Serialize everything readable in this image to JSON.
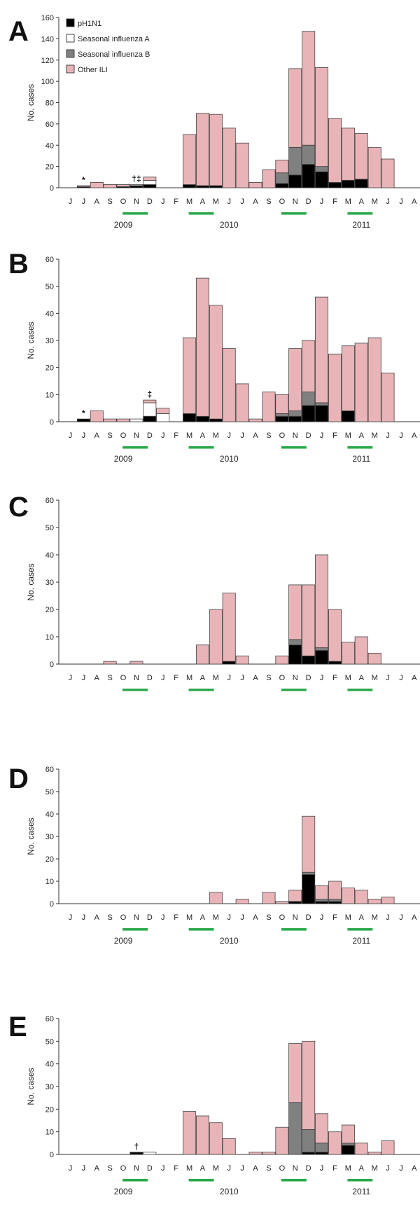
{
  "colors": {
    "pH1N1": "#000000",
    "Seasonal influenza A": "#ffffff",
    "Seasonal influenza B": "#808080",
    "Other ILI": "#e8b4b8",
    "season_bar": "#2aa84a",
    "axis": "#333333"
  },
  "legend": [
    "pH1N1",
    "Seasonal influenza A",
    "Seasonal influenza B",
    "Other ILI"
  ],
  "months": [
    "J",
    "J",
    "A",
    "S",
    "O",
    "N",
    "D",
    "J",
    "F",
    "M",
    "A",
    "M",
    "J",
    "J",
    "A",
    "S",
    "O",
    "N",
    "D",
    "J",
    "F",
    "M",
    "A",
    "M",
    "J",
    "J",
    "A",
    "S"
  ],
  "years": [
    "2009",
    "2010",
    "2011"
  ],
  "chart_data": [
    {
      "panel": "A",
      "type": "bar",
      "stacked": true,
      "ylabel": "No. cases",
      "ylim": [
        0,
        160
      ],
      "yticks": [
        "0",
        "20",
        "40",
        "60",
        "80",
        "100",
        "120",
        "140",
        "160"
      ],
      "show_years": true,
      "annotations": [
        {
          "text": "*",
          "month_index": 1
        },
        {
          "text": "†‡",
          "month_index": 5
        }
      ],
      "series": [
        {
          "name": "pH1N1",
          "values": [
            0,
            1,
            0,
            0,
            1,
            2,
            3,
            0,
            0,
            3,
            2,
            2,
            0,
            0,
            0,
            0,
            4,
            12,
            22,
            15,
            5,
            7,
            8,
            0,
            0,
            0,
            0,
            0
          ]
        },
        {
          "name": "Seasonal influenza A",
          "values": [
            0,
            0,
            0,
            0,
            0,
            1,
            4,
            0,
            0,
            0,
            0,
            0,
            0,
            0,
            0,
            0,
            0,
            0,
            0,
            0,
            0,
            0,
            0,
            0,
            0,
            0,
            0,
            0
          ]
        },
        {
          "name": "Seasonal influenza B",
          "values": [
            0,
            0,
            0,
            0,
            0,
            0,
            0,
            0,
            0,
            0,
            0,
            0,
            0,
            0,
            0,
            0,
            10,
            26,
            18,
            5,
            0,
            0,
            0,
            0,
            0,
            0,
            0,
            0
          ]
        },
        {
          "name": "Other ILI",
          "values": [
            0,
            1,
            5,
            3,
            2,
            0,
            3,
            0,
            0,
            47,
            68,
            67,
            56,
            42,
            5,
            17,
            12,
            74,
            107,
            93,
            60,
            49,
            43,
            38,
            27,
            0,
            0,
            0
          ]
        }
      ]
    },
    {
      "panel": "B",
      "type": "bar",
      "stacked": true,
      "ylabel": "No. cases",
      "ylim": [
        0,
        60
      ],
      "yticks": [
        "0",
        "10",
        "20",
        "30",
        "40",
        "50",
        "60"
      ],
      "show_years": true,
      "annotations": [
        {
          "text": "*",
          "month_index": 1
        },
        {
          "text": "‡",
          "month_index": 6
        }
      ],
      "series": [
        {
          "name": "pH1N1",
          "values": [
            0,
            1,
            0,
            0,
            0,
            0,
            2,
            0,
            0,
            3,
            2,
            1,
            0,
            0,
            0,
            0,
            2,
            2,
            6,
            6,
            0,
            4,
            0,
            0,
            0,
            0,
            0,
            0
          ]
        },
        {
          "name": "Seasonal influenza A",
          "values": [
            0,
            0,
            0,
            0,
            0,
            1,
            5,
            3,
            0,
            0,
            0,
            0,
            0,
            0,
            0,
            0,
            0,
            0,
            0,
            0,
            0,
            0,
            0,
            0,
            0,
            0,
            0,
            0
          ]
        },
        {
          "name": "Seasonal influenza B",
          "values": [
            0,
            0,
            0,
            0,
            0,
            0,
            0,
            0,
            0,
            0,
            0,
            0,
            0,
            0,
            0,
            0,
            1,
            2,
            5,
            1,
            0,
            0,
            0,
            0,
            0,
            0,
            0,
            0
          ]
        },
        {
          "name": "Other ILI",
          "values": [
            0,
            0,
            4,
            1,
            1,
            0,
            1,
            2,
            0,
            28,
            51,
            42,
            27,
            14,
            1,
            11,
            7,
            23,
            19,
            39,
            25,
            24,
            29,
            31,
            18,
            0,
            0,
            0
          ]
        }
      ]
    },
    {
      "panel": "C",
      "type": "bar",
      "stacked": true,
      "ylabel": "No. cases",
      "ylim": [
        0,
        60
      ],
      "yticks": [
        "0",
        "10",
        "20",
        "30",
        "40",
        "50",
        "60"
      ],
      "show_years": false,
      "annotations": [],
      "series": [
        {
          "name": "pH1N1",
          "values": [
            0,
            0,
            0,
            0,
            0,
            0,
            0,
            0,
            0,
            0,
            0,
            0,
            1,
            0,
            0,
            0,
            0,
            7,
            3,
            5,
            1,
            0,
            0,
            0,
            0,
            0,
            0,
            0
          ]
        },
        {
          "name": "Seasonal influenza A",
          "values": [
            0,
            0,
            0,
            0,
            0,
            0,
            0,
            0,
            0,
            0,
            0,
            0,
            0,
            0,
            0,
            0,
            0,
            0,
            0,
            0,
            0,
            0,
            0,
            0,
            0,
            0,
            0,
            0
          ]
        },
        {
          "name": "Seasonal influenza B",
          "values": [
            0,
            0,
            0,
            0,
            0,
            0,
            0,
            0,
            0,
            0,
            0,
            0,
            0,
            0,
            0,
            0,
            0,
            2,
            0,
            1,
            0,
            0,
            0,
            0,
            0,
            0,
            0,
            0
          ]
        },
        {
          "name": "Other ILI",
          "values": [
            0,
            0,
            0,
            1,
            0,
            1,
            0,
            0,
            0,
            0,
            7,
            20,
            25,
            3,
            0,
            0,
            3,
            20,
            26,
            34,
            19,
            8,
            10,
            4,
            0,
            0,
            0,
            0
          ]
        }
      ]
    },
    {
      "panel": "D",
      "type": "bar",
      "stacked": true,
      "ylabel": "No. cases",
      "ylim": [
        0,
        60
      ],
      "yticks": [
        "0",
        "10",
        "20",
        "30",
        "40",
        "50",
        "60"
      ],
      "show_years": true,
      "annotations": [],
      "series": [
        {
          "name": "pH1N1",
          "values": [
            0,
            0,
            0,
            0,
            0,
            0,
            0,
            0,
            0,
            0,
            0,
            0,
            0,
            0,
            0,
            0,
            0,
            1,
            13,
            1,
            1,
            0,
            0,
            0,
            0,
            0,
            0,
            0
          ]
        },
        {
          "name": "Seasonal influenza A",
          "values": [
            0,
            0,
            0,
            0,
            0,
            0,
            0,
            0,
            0,
            0,
            0,
            0,
            0,
            0,
            0,
            0,
            0,
            0,
            0,
            0,
            0,
            0,
            0,
            0,
            0,
            0,
            0,
            0
          ]
        },
        {
          "name": "Seasonal influenza B",
          "values": [
            0,
            0,
            0,
            0,
            0,
            0,
            0,
            0,
            0,
            0,
            0,
            0,
            0,
            0,
            0,
            0,
            0,
            0,
            1,
            1,
            1,
            0,
            0,
            0,
            0,
            0,
            0,
            0
          ]
        },
        {
          "name": "Other ILI",
          "values": [
            0,
            0,
            0,
            0,
            0,
            0,
            0,
            0,
            0,
            0,
            0,
            5,
            0,
            2,
            0,
            5,
            1,
            5,
            25,
            6,
            8,
            7,
            6,
            2,
            3,
            0,
            0,
            0
          ]
        }
      ]
    },
    {
      "panel": "E",
      "type": "bar",
      "stacked": true,
      "ylabel": "No. cases",
      "ylim": [
        0,
        60
      ],
      "yticks": [
        "0",
        "10",
        "20",
        "30",
        "40",
        "50",
        "60"
      ],
      "show_years": true,
      "annotations": [
        {
          "text": "†",
          "month_index": 5
        }
      ],
      "series": [
        {
          "name": "pH1N1",
          "values": [
            0,
            0,
            0,
            0,
            0,
            1,
            0,
            0,
            0,
            0,
            0,
            0,
            0,
            0,
            0,
            0,
            0,
            0,
            1,
            1,
            0,
            4,
            0,
            0,
            0,
            0,
            0,
            0
          ]
        },
        {
          "name": "Seasonal influenza A",
          "values": [
            0,
            0,
            0,
            0,
            0,
            0,
            1,
            0,
            0,
            0,
            0,
            0,
            0,
            0,
            0,
            0,
            0,
            0,
            0,
            0,
            0,
            0,
            0,
            0,
            0,
            0,
            0,
            0
          ]
        },
        {
          "name": "Seasonal influenza B",
          "values": [
            0,
            0,
            0,
            0,
            0,
            0,
            0,
            0,
            0,
            0,
            0,
            0,
            0,
            0,
            0,
            0,
            0,
            23,
            10,
            4,
            0,
            1,
            0,
            0,
            0,
            0,
            0,
            0
          ]
        },
        {
          "name": "Other ILI",
          "values": [
            0,
            0,
            0,
            0,
            0,
            0,
            0,
            0,
            0,
            19,
            17,
            14,
            7,
            0,
            1,
            1,
            12,
            26,
            39,
            13,
            10,
            8,
            5,
            1,
            6,
            0,
            0,
            0
          ]
        }
      ]
    }
  ]
}
